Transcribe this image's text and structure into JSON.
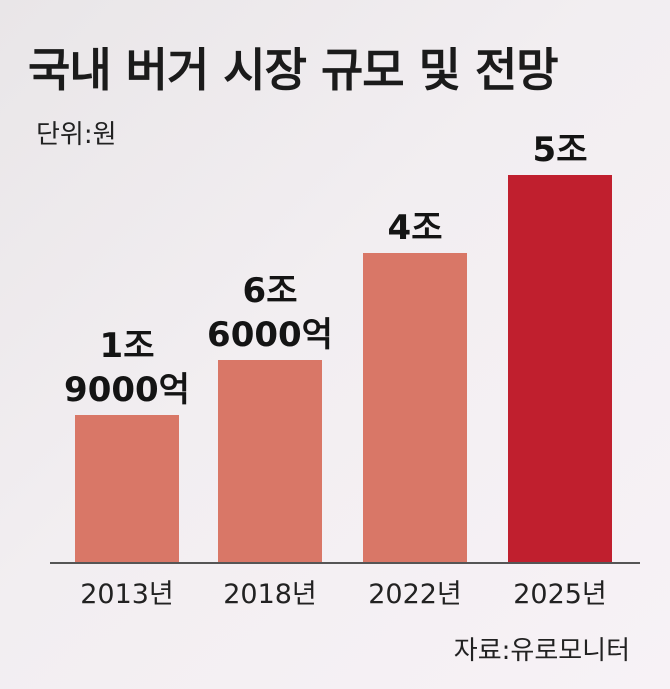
{
  "chart_data": {
    "type": "bar",
    "title": "국내 버거 시장 규모 및 전망",
    "unit_label": "단위:원",
    "source": "자료:유로모니터",
    "categories": [
      "2013년",
      "2018년",
      "2022년",
      "2025년"
    ],
    "values": [
      19000,
      66000,
      40000,
      50000
    ],
    "value_note": "values in 억원",
    "data_labels": [
      [
        "1조",
        "9000억"
      ],
      [
        "6조",
        "6000억"
      ],
      [
        "4조"
      ],
      [
        "5조"
      ]
    ],
    "colors": [
      "#d97767",
      "#d97767",
      "#d97767",
      "#c01f2e"
    ],
    "axis_color": "#555555"
  }
}
